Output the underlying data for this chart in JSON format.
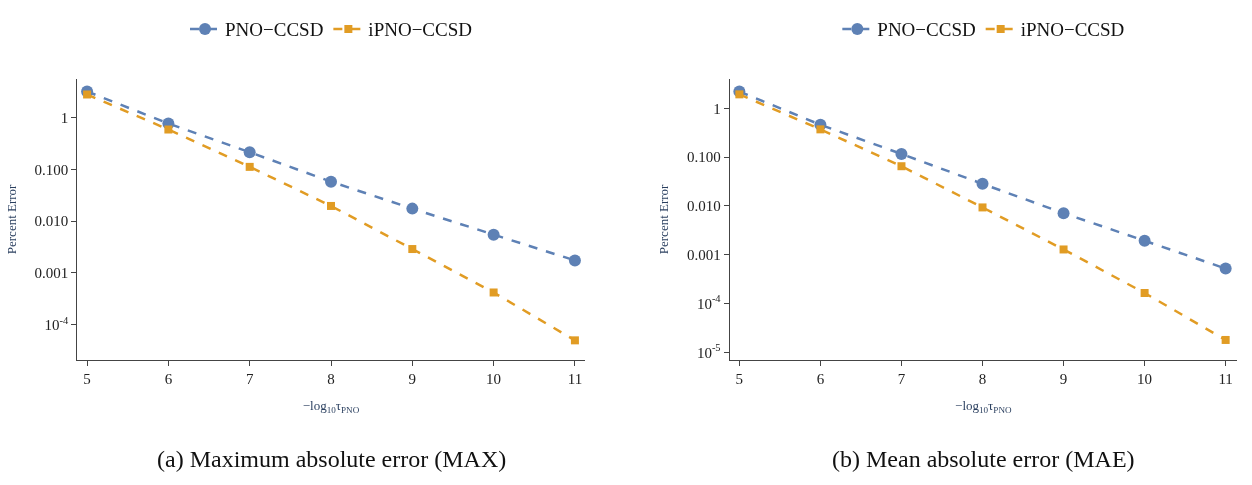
{
  "chart_data": [
    {
      "type": "line",
      "xlabel": "−log$_{10}$τ$_{PNO}$",
      "ylabel": "Percent Error",
      "log": "y",
      "grid": false,
      "legend": "top",
      "line_style": "dashed",
      "x": [
        5,
        6,
        7,
        8,
        9,
        10,
        11
      ],
      "xlim": [
        4.88,
        11.12
      ],
      "xticks": [
        5,
        6,
        7,
        8,
        9,
        10,
        11
      ],
      "ylim": [
        2.1e-05,
        5.6
      ],
      "yticks": [
        {
          "value": 1,
          "label": "1"
        },
        {
          "value": 0.1,
          "label": "0.100"
        },
        {
          "value": 0.01,
          "label": "0.010"
        },
        {
          "value": 0.001,
          "label": "0.001"
        },
        {
          "value": 0.0001,
          "label": "10$^{-4}$"
        }
      ],
      "series": [
        {
          "name": "PNO−CCSD",
          "color": "#5e81b5",
          "marker": "circle",
          "values": [
            3.2,
            0.77,
            0.215,
            0.058,
            0.0175,
            0.0055,
            0.00175
          ]
        },
        {
          "name": "iPNO−CCSD",
          "color": "#e19c24",
          "marker": "square",
          "values": [
            2.8,
            0.59,
            0.112,
            0.0197,
            0.0029,
            0.00042,
            5e-05
          ]
        }
      ],
      "annotations": [
        "(a) Maximum absolute error (MAX)"
      ]
    },
    {
      "type": "line",
      "xlabel": "−log$_{10}$τ$_{PNO}$",
      "ylabel": "Percent Error",
      "log": "y",
      "grid": false,
      "legend": "top",
      "line_style": "dashed",
      "x": [
        5,
        6,
        7,
        8,
        9,
        10,
        11
      ],
      "xlim": [
        4.88,
        11.14
      ],
      "xticks": [
        5,
        6,
        7,
        8,
        9,
        10,
        11
      ],
      "ylim": [
        7e-06,
        4.0
      ],
      "yticks": [
        {
          "value": 1,
          "label": "1"
        },
        {
          "value": 0.1,
          "label": "0.100"
        },
        {
          "value": 0.01,
          "label": "0.010"
        },
        {
          "value": 0.001,
          "label": "0.001"
        },
        {
          "value": 0.0001,
          "label": "10$^{-4}$"
        },
        {
          "value": 1e-05,
          "label": "10$^{-5}$"
        }
      ],
      "series": [
        {
          "name": "PNO−CCSD",
          "color": "#5e81b5",
          "marker": "circle",
          "values": [
            2.2,
            0.46,
            0.116,
            0.0283,
            0.0071,
            0.00193,
            0.00052
          ]
        },
        {
          "name": "iPNO−CCSD",
          "color": "#e19c24",
          "marker": "square",
          "values": [
            1.93,
            0.37,
            0.065,
            0.0093,
            0.00128,
            0.000164,
            1.79e-05
          ]
        }
      ],
      "annotations": [
        "(b) Mean absolute error (MAE)"
      ]
    }
  ]
}
